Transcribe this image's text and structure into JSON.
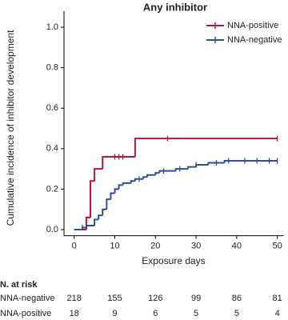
{
  "chart_data": {
    "type": "step",
    "title": "Any inhibitor",
    "x_label": "Exposure days",
    "y_label": "Cumulative incidence of inhibitor development",
    "xlim": [
      -2.5,
      51.5
    ],
    "ylim": [
      -0.03,
      1.08
    ],
    "xticks": [
      0,
      10,
      20,
      30,
      40,
      50
    ],
    "yticks": [
      {
        "value": 0,
        "label": "0.0"
      },
      0.2,
      0.4,
      0.6,
      0.8,
      {
        "value": 1,
        "label": "1.0"
      }
    ],
    "legend": "top-right",
    "series": [
      {
        "name": "NNA-positive",
        "color": "#b5173b",
        "x": [
          0,
          3,
          4,
          5,
          7,
          15,
          50
        ],
        "values": [
          0,
          0.06,
          0.24,
          0.3,
          0.36,
          0.45,
          0.45
        ],
        "censored": [
          10,
          11,
          12,
          23,
          50
        ]
      },
      {
        "name": "NNA-negative",
        "color": "#2f5190",
        "x": [
          0,
          2,
          3,
          5,
          6,
          7,
          8,
          9,
          10,
          11,
          12,
          14,
          15,
          17,
          18,
          20,
          21,
          25,
          28,
          30,
          33,
          37,
          50
        ],
        "values": [
          0,
          0.01,
          0.02,
          0.05,
          0.07,
          0.1,
          0.15,
          0.18,
          0.2,
          0.22,
          0.23,
          0.24,
          0.25,
          0.26,
          0.27,
          0.28,
          0.29,
          0.3,
          0.31,
          0.32,
          0.33,
          0.34,
          0.34
        ],
        "censored": [
          2,
          16,
          22,
          26,
          30,
          35,
          38,
          42,
          45,
          48,
          50
        ]
      }
    ]
  },
  "risk_table": {
    "title": "N. at risk",
    "rows": [
      {
        "name": "NNA-negative",
        "values": [
          218,
          155,
          126,
          99,
          86,
          81
        ]
      },
      {
        "name": "NNA-positive",
        "values": [
          18,
          9,
          6,
          5,
          5,
          4
        ]
      }
    ]
  }
}
